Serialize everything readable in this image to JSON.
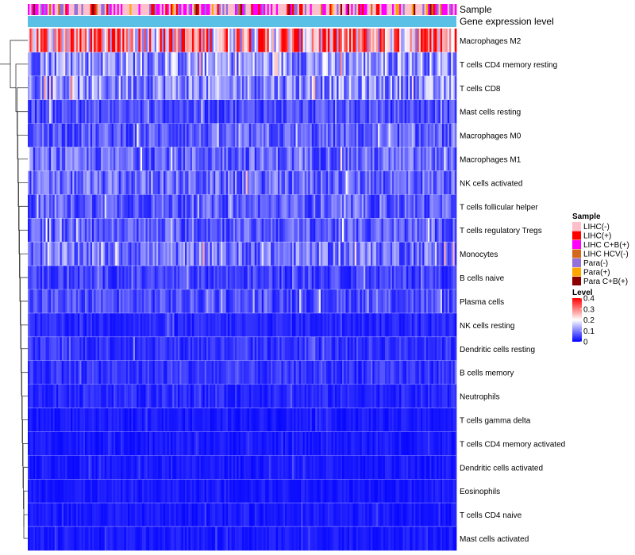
{
  "chart_data": {
    "type": "heatmap",
    "title": "",
    "column_annotations": [
      "Sample",
      "Gene expression level"
    ],
    "row_labels": [
      "Macrophages M2",
      "T cells CD4 memory resting",
      "T cells CD8",
      "Mast cells resting",
      "Macrophages M0",
      "Macrophages M1",
      "NK cells activated",
      "T cells follicular helper",
      "T cells regulatory  Tregs",
      "Monocytes",
      "B cells naive",
      "Plasma cells",
      "NK cells resting",
      "Dendritic cells resting",
      "B cells memory",
      "Neutrophils",
      "T cells gamma delta",
      "T cells CD4 memory activated",
      "Dendritic cells activated",
      "Eosinophils",
      "T cells CD4 naive",
      "Mast cells activated"
    ],
    "row_mean_levels": [
      0.27,
      0.12,
      0.11,
      0.06,
      0.07,
      0.08,
      0.08,
      0.07,
      0.07,
      0.09,
      0.05,
      0.06,
      0.03,
      0.04,
      0.04,
      0.03,
      0.02,
      0.02,
      0.02,
      0.02,
      0.02,
      0.02
    ],
    "n_columns": 240,
    "sample_legend": {
      "title": "Sample",
      "entries": [
        {
          "label": "LIHC(-)",
          "color": "#ffc0cb"
        },
        {
          "label": "LIHC(+)",
          "color": "#ff0000"
        },
        {
          "label": "LIHC C+B(+)",
          "color": "#ff00ff"
        },
        {
          "label": "LIHC HCV(-)",
          "color": "#d2691e"
        },
        {
          "label": "Para(-)",
          "color": "#9370db"
        },
        {
          "label": "Para(+)",
          "color": "#ffa500"
        },
        {
          "label": "Para C+B(+)",
          "color": "#8b0000"
        }
      ],
      "weights": [
        0.45,
        0.1,
        0.2,
        0.05,
        0.12,
        0.04,
        0.04
      ]
    },
    "level_legend": {
      "title": "Level",
      "ticks": [
        "0.4",
        "0.3",
        "0.2",
        "0.1",
        "0"
      ],
      "range": [
        0,
        0.4
      ],
      "colors": [
        "#0000ff",
        "#ffffff",
        "#ff0000"
      ]
    },
    "gene_expression_color": "#5bc0e6"
  }
}
